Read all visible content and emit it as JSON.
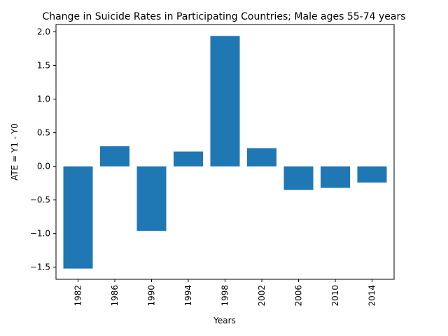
{
  "chart_data": {
    "type": "bar",
    "title": "Change in Suicide Rates in Participating Countries; Male ages 55-74 years",
    "xlabel": "Years",
    "ylabel": "ATE = Y1 - Y0",
    "categories": [
      "1982",
      "1986",
      "1990",
      "1994",
      "1998",
      "2002",
      "2006",
      "2010",
      "2014"
    ],
    "values": [
      -1.52,
      0.3,
      -0.96,
      0.22,
      1.94,
      0.27,
      -0.35,
      -0.32,
      -0.24
    ],
    "ylim": [
      -1.68,
      2.11
    ],
    "yticks": [
      -1.5,
      -1.0,
      -0.5,
      0.0,
      0.5,
      1.0,
      1.5,
      2.0
    ],
    "ytick_labels": [
      "−1.5",
      "−1.0",
      "−0.5",
      "0.0",
      "0.5",
      "1.0",
      "1.5",
      "2.0"
    ],
    "grid": false,
    "bar_color": "#1f77b4"
  }
}
